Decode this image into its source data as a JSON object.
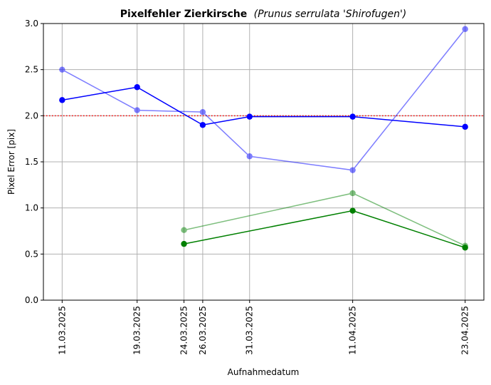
{
  "chart_data": {
    "type": "line",
    "title_bold": "Pixelfehler Zierkirsche",
    "title_italic": "(Prunus serrulata 'Shirofugen')",
    "xlabel": "Aufnahmedatum",
    "ylabel": "Pixel Error [pix]",
    "x_ticks": [
      "11.03.2025",
      "19.03.2025",
      "24.03.2025",
      "26.03.2025",
      "31.03.2025",
      "11.04.2025",
      "23.04.2025"
    ],
    "y_ticks": [
      "0.0",
      "0.5",
      "1.0",
      "1.5",
      "2.0",
      "2.5",
      "3.0"
    ],
    "ylim": [
      0,
      3.0
    ],
    "xlim": [
      "09.03.2025",
      "25.04.2025"
    ],
    "grid": true,
    "reference_line": {
      "y": 2.0,
      "color": "#ff0000",
      "style": "dotted"
    },
    "series": [
      {
        "color": "#0000ff",
        "opacity": 1.0,
        "x": [
          "11.03.2025",
          "19.03.2025",
          "26.03.2025",
          "31.03.2025",
          "11.04.2025",
          "23.04.2025"
        ],
        "y": [
          2.17,
          2.31,
          1.9,
          1.99,
          1.99,
          1.88
        ]
      },
      {
        "color": "#0000ff",
        "opacity": 0.5,
        "x": [
          "11.03.2025",
          "19.03.2025",
          "26.03.2025",
          "31.03.2025",
          "11.04.2025",
          "23.04.2025"
        ],
        "y": [
          2.5,
          2.06,
          2.04,
          1.56,
          1.41,
          2.94
        ]
      },
      {
        "color": "#008000",
        "opacity": 1.0,
        "x": [
          "24.03.2025",
          "11.04.2025",
          "23.04.2025"
        ],
        "y": [
          0.61,
          0.97,
          0.57
        ]
      },
      {
        "color": "#008000",
        "opacity": 0.5,
        "x": [
          "24.03.2025",
          "11.04.2025",
          "23.04.2025"
        ],
        "y": [
          0.76,
          1.16,
          0.59
        ]
      }
    ]
  }
}
